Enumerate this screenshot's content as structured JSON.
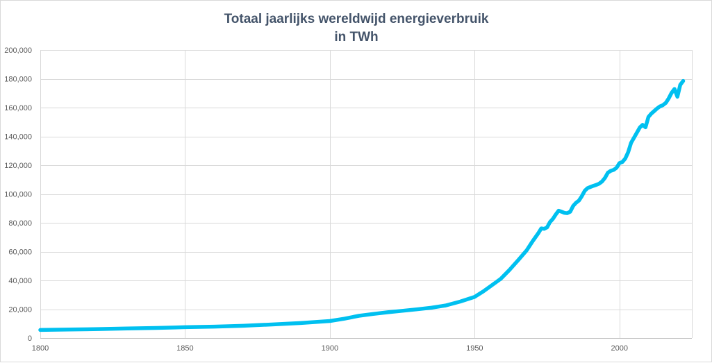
{
  "chart_data": {
    "type": "line",
    "title": [
      "Totaal jaarlijks wereldwijd energieverbruik",
      "in TWh"
    ],
    "xlabel": "",
    "ylabel": "",
    "xlim": [
      1800,
      2025
    ],
    "ylim": [
      0,
      200000
    ],
    "x_ticks": [
      1800,
      1850,
      1900,
      1950,
      2000
    ],
    "y_ticks": [
      0,
      20000,
      40000,
      60000,
      80000,
      100000,
      120000,
      140000,
      160000,
      180000,
      200000
    ],
    "x_tick_labels": [
      "1800",
      "1850",
      "1900",
      "1950",
      "2000"
    ],
    "y_tick_labels": [
      "0",
      "20,000",
      "40,000",
      "60,000",
      "80,000",
      "100,000",
      "120,000",
      "140,000",
      "160,000",
      "180,000",
      "200,000"
    ],
    "grid": true,
    "legend": "none",
    "color": "#00c0f0",
    "series": [
      {
        "x": [
          1800,
          1810,
          1820,
          1830,
          1840,
          1850,
          1860,
          1870,
          1880,
          1890,
          1900,
          1905,
          1910,
          1915,
          1920,
          1925,
          1930,
          1935,
          1940,
          1945,
          1950,
          1953,
          1956,
          1959,
          1962,
          1965,
          1968,
          1970,
          1972,
          1973,
          1974,
          1975,
          1976,
          1977,
          1978,
          1979,
          1980,
          1981,
          1982,
          1983,
          1984,
          1985,
          1986,
          1987,
          1988,
          1989,
          1990,
          1991,
          1992,
          1993,
          1994,
          1995,
          1996,
          1997,
          1998,
          1999,
          2000,
          2001,
          2002,
          2003,
          2004,
          2005,
          2006,
          2007,
          2008,
          2009,
          2010,
          2011,
          2012,
          2013,
          2014,
          2015,
          2016,
          2017,
          2018,
          2019,
          2020,
          2021,
          2022
        ],
        "y": [
          5600,
          5900,
          6200,
          6600,
          7000,
          7500,
          7900,
          8500,
          9400,
          10400,
          11800,
          13400,
          15400,
          16700,
          17900,
          18900,
          19900,
          21000,
          22600,
          25300,
          28600,
          32400,
          36700,
          41100,
          47300,
          54000,
          61000,
          67200,
          72800,
          76100,
          75800,
          76800,
          80500,
          82700,
          85800,
          88400,
          87700,
          86900,
          86700,
          87700,
          91700,
          93900,
          95400,
          98500,
          102200,
          104100,
          104900,
          105700,
          106300,
          107200,
          108700,
          111200,
          114800,
          116100,
          116700,
          118200,
          121500,
          122200,
          124600,
          129000,
          135500,
          139000,
          142500,
          146100,
          148000,
          146300,
          153500,
          155800,
          157600,
          159400,
          160800,
          161700,
          163300,
          166300,
          170200,
          172900,
          167500,
          175800,
          178500
        ]
      }
    ]
  }
}
